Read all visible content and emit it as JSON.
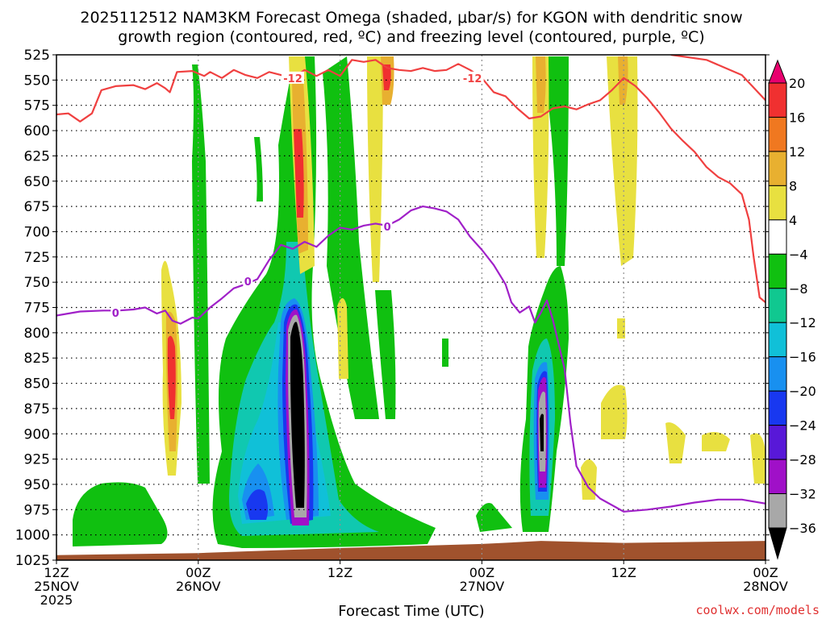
{
  "chart_data": {
    "type": "heatmap",
    "title_line1": "2025112512 NAM3KM Forecast Omega (shaded, μbar/s) for KGON with dendritic snow",
    "title_line2": "growth region (contoured, red, ºC) and freezing level (contoured, purple, ºC)",
    "xlabel": "Forecast Time (UTC)",
    "credit": "coolwx.com/models",
    "x_range_hours": [
      0,
      60
    ],
    "x_ticks": [
      {
        "hour": 0,
        "lines": [
          "12Z",
          "25NOV",
          "2025"
        ]
      },
      {
        "hour": 12,
        "lines": [
          "00Z",
          "26NOV"
        ]
      },
      {
        "hour": 24,
        "lines": [
          "12Z"
        ]
      },
      {
        "hour": 36,
        "lines": [
          "00Z",
          "27NOV"
        ]
      },
      {
        "hour": 48,
        "lines": [
          "12Z"
        ]
      },
      {
        "hour": 60,
        "lines": [
          "00Z",
          "28NOV"
        ]
      }
    ],
    "y_range_hpa": [
      525,
      1025
    ],
    "y_ticks": [
      525,
      550,
      575,
      600,
      625,
      650,
      675,
      700,
      725,
      750,
      775,
      800,
      825,
      850,
      875,
      900,
      925,
      950,
      975,
      1000,
      1025
    ],
    "colorbar": {
      "labels": [
        "20",
        "16",
        "12",
        "8",
        "4",
        "−4",
        "−8",
        "−12",
        "−16",
        "−20",
        "−24",
        "−28",
        "−32",
        "−36"
      ],
      "colors": [
        "#e8006e",
        "#f03030",
        "#f07820",
        "#e8b030",
        "#e8e040",
        "#ffffff",
        "#10c010",
        "#10c890",
        "#10c0d8",
        "#1890f0",
        "#1838f0",
        "#5818d8",
        "#a010c8",
        "#a8a8a8",
        "#000000"
      ]
    },
    "contours": [
      {
        "name": "dendritic-growth -12C",
        "color": "#f04040",
        "label": "-12",
        "label_points": [
          [
            20.0,
            548
          ],
          [
            35.2,
            548
          ]
        ],
        "points": [
          [
            0,
            584
          ],
          [
            1,
            583
          ],
          [
            2,
            591
          ],
          [
            3,
            583
          ],
          [
            3.8,
            560
          ],
          [
            5,
            556
          ],
          [
            6.5,
            555
          ],
          [
            7.5,
            559
          ],
          [
            8.5,
            553
          ],
          [
            9.2,
            558
          ],
          [
            9.6,
            562
          ],
          [
            10.2,
            542
          ],
          [
            11.5,
            541
          ],
          [
            12.5,
            546
          ],
          [
            13,
            542
          ],
          [
            14,
            548
          ],
          [
            15,
            540
          ],
          [
            16,
            545
          ],
          [
            17,
            548
          ],
          [
            18,
            542
          ],
          [
            19,
            545
          ],
          [
            20,
            548
          ],
          [
            21,
            540
          ],
          [
            22,
            546
          ],
          [
            23,
            540
          ],
          [
            24,
            546
          ],
          [
            25,
            530
          ],
          [
            26,
            532
          ],
          [
            27,
            530
          ],
          [
            28,
            538
          ],
          [
            29,
            540
          ],
          [
            30,
            541
          ],
          [
            31,
            538
          ],
          [
            32,
            541
          ],
          [
            33,
            540
          ],
          [
            34,
            534
          ],
          [
            35,
            540
          ],
          [
            36,
            548
          ],
          [
            37,
            562
          ],
          [
            38,
            566
          ],
          [
            39,
            578
          ],
          [
            40,
            588
          ],
          [
            41,
            586
          ],
          [
            42,
            578
          ],
          [
            43,
            576
          ],
          [
            44,
            579
          ],
          [
            45,
            574
          ],
          [
            46,
            570
          ],
          [
            47,
            560
          ],
          [
            48,
            548
          ],
          [
            49,
            556
          ],
          [
            50,
            568
          ],
          [
            51,
            582
          ],
          [
            52,
            598
          ],
          [
            53,
            610
          ],
          [
            54,
            621
          ],
          [
            55,
            636
          ],
          [
            56,
            646
          ],
          [
            57,
            652
          ],
          [
            58,
            663
          ],
          [
            58.6,
            688
          ],
          [
            59,
            725
          ],
          [
            59.5,
            765
          ],
          [
            60,
            770
          ]
        ]
      },
      {
        "name": "dendritic-growth -12C upper",
        "color": "#f04040",
        "label": "",
        "label_points": [],
        "points": [
          [
            52,
            525
          ],
          [
            55,
            530
          ],
          [
            58,
            545
          ],
          [
            60,
            570
          ]
        ]
      },
      {
        "name": "freezing-level 0C",
        "color": "#a020c8",
        "label": "0",
        "label_points": [
          [
            5.0,
            780
          ],
          [
            16.2,
            749
          ],
          [
            28.0,
            695
          ]
        ],
        "points": [
          [
            0,
            783
          ],
          [
            2,
            779
          ],
          [
            4,
            778
          ],
          [
            5.2,
            778
          ],
          [
            6.5,
            777
          ],
          [
            7.5,
            775
          ],
          [
            8.5,
            781
          ],
          [
            9.2,
            778
          ],
          [
            9.8,
            788
          ],
          [
            10.5,
            791
          ],
          [
            11.5,
            785
          ],
          [
            12,
            786
          ],
          [
            13,
            775
          ],
          [
            14,
            766
          ],
          [
            15,
            756
          ],
          [
            16,
            752
          ],
          [
            17,
            747
          ],
          [
            18,
            728
          ],
          [
            19,
            713
          ],
          [
            20,
            717
          ],
          [
            21,
            710
          ],
          [
            22,
            715
          ],
          [
            23,
            704
          ],
          [
            24,
            696
          ],
          [
            25,
            698
          ],
          [
            26,
            694
          ],
          [
            27,
            692
          ],
          [
            28,
            694
          ],
          [
            29,
            688
          ],
          [
            30,
            679
          ],
          [
            31,
            675
          ],
          [
            32,
            677
          ],
          [
            33,
            680
          ],
          [
            34,
            688
          ],
          [
            35,
            705
          ],
          [
            36,
            718
          ],
          [
            37,
            733
          ],
          [
            38,
            752
          ],
          [
            38.5,
            770
          ],
          [
            39.2,
            780
          ],
          [
            40,
            774
          ],
          [
            40.5,
            790
          ],
          [
            41,
            780
          ],
          [
            41.5,
            768
          ],
          [
            42,
            787
          ],
          [
            43,
            836
          ],
          [
            43.5,
            890
          ],
          [
            44,
            932
          ],
          [
            45,
            953
          ],
          [
            46,
            964
          ],
          [
            48,
            977
          ],
          [
            50,
            975
          ],
          [
            52,
            972
          ],
          [
            54,
            968
          ],
          [
            56,
            965
          ],
          [
            58,
            965
          ],
          [
            60,
            969
          ]
        ]
      }
    ],
    "terrain_color": "#a0522d",
    "terrain_surface": [
      [
        0,
        1020
      ],
      [
        12,
        1018
      ],
      [
        24,
        1013
      ],
      [
        36,
        1009
      ],
      [
        41,
        1006
      ],
      [
        48,
        1008
      ],
      [
        60,
        1006
      ]
    ]
  }
}
